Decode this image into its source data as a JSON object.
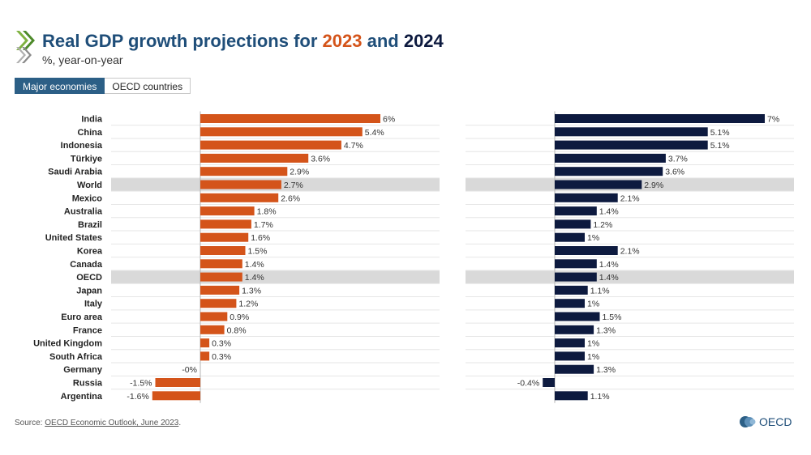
{
  "header": {
    "title_prefix": "Real GDP growth projections for ",
    "year_a": "2023",
    "title_join": " and ",
    "year_b": "2024",
    "subtitle": "%, year-on-year"
  },
  "tabs": [
    {
      "label": "Major economies",
      "active": true
    },
    {
      "label": "OECD countries",
      "active": false
    }
  ],
  "footer": {
    "source_prefix": "Source: ",
    "source_link": "OECD Economic Outlook, June 2023",
    "source_suffix": "."
  },
  "brand": {
    "name": "OECD"
  },
  "colors": {
    "2023": "#d4541a",
    "2024": "#0d1a3f",
    "highlight_row": "#d9d9d9",
    "title": "#1f4e79"
  },
  "chart_data": {
    "type": "bar",
    "orientation": "horizontal",
    "categories": [
      "India",
      "China",
      "Indonesia",
      "Türkiye",
      "Saudi Arabia",
      "World",
      "Mexico",
      "Australia",
      "Brazil",
      "United States",
      "Korea",
      "Canada",
      "OECD",
      "Japan",
      "Italy",
      "Euro area",
      "France",
      "United Kingdom",
      "South Africa",
      "Germany",
      "Russia",
      "Argentina"
    ],
    "highlighted": [
      "World",
      "OECD"
    ],
    "series": [
      {
        "name": "2023",
        "values": [
          6,
          5.4,
          4.7,
          3.6,
          2.9,
          2.7,
          2.6,
          1.8,
          1.7,
          1.6,
          1.5,
          1.4,
          1.4,
          1.3,
          1.2,
          0.9,
          0.8,
          0.3,
          0.3,
          -0.0,
          -1.5,
          -1.6
        ],
        "labels": [
          "6%",
          "5.4%",
          "4.7%",
          "3.6%",
          "2.9%",
          "2.7%",
          "2.6%",
          "1.8%",
          "1.7%",
          "1.6%",
          "1.5%",
          "1.4%",
          "1.4%",
          "1.3%",
          "1.2%",
          "0.9%",
          "0.8%",
          "0.3%",
          "0.3%",
          "-0%",
          "-1.5%",
          "-1.6%"
        ]
      },
      {
        "name": "2024",
        "values": [
          7,
          5.1,
          5.1,
          3.7,
          3.6,
          2.9,
          2.1,
          1.4,
          1.2,
          1,
          2.1,
          1.4,
          1.4,
          1.1,
          1,
          1.5,
          1.3,
          1,
          1,
          1.3,
          -0.4,
          1.1
        ],
        "labels": [
          "7%",
          "5.1%",
          "5.1%",
          "3.7%",
          "3.6%",
          "2.9%",
          "2.1%",
          "1.4%",
          "1.2%",
          "1%",
          "2.1%",
          "1.4%",
          "1.4%",
          "1.1%",
          "1%",
          "1.5%",
          "1.3%",
          "1%",
          "1%",
          "1.3%",
          "-0.4%",
          "1.1%"
        ]
      }
    ],
    "unit": "%",
    "grid": true,
    "legend": "none"
  }
}
